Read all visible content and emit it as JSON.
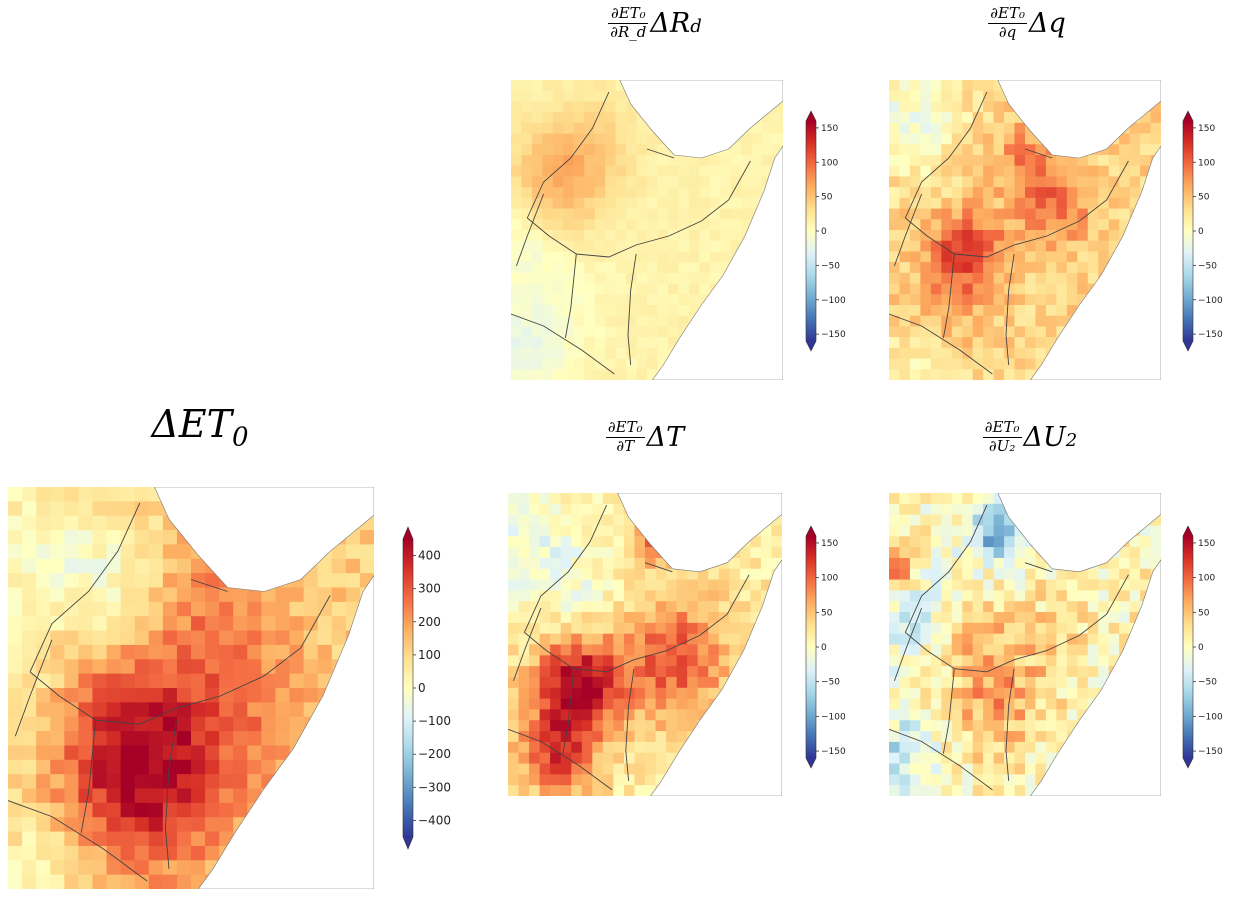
{
  "figure": {
    "colormap": "RdYlBu_r",
    "colormap_stops": [
      "#313695",
      "#4575b4",
      "#74add1",
      "#abd9e9",
      "#e0f3f8",
      "#ffffbf",
      "#fee090",
      "#fdae61",
      "#f46d43",
      "#d73027",
      "#a50026"
    ],
    "land_background": "#fefebe",
    "border_color": "#444444"
  },
  "chart_data": [
    {
      "id": "delta-et0",
      "type": "heatmap",
      "title": "ΔET₀",
      "title_parts": {
        "numerator": "",
        "denominator": "",
        "main": "ΔET",
        "sub": "0"
      },
      "colorbar": {
        "vmin": -450,
        "vmax": 450,
        "ticks": [
          -400,
          -300,
          -200,
          -100,
          0,
          100,
          200,
          300,
          400
        ],
        "tick_labels": [
          "−400",
          "−300",
          "−200",
          "−100",
          "0",
          "100",
          "200",
          "300",
          "400"
        ],
        "extend": "both"
      },
      "field": {
        "base": 120,
        "hotspots": [
          [
            0.3,
            0.63,
            0.16,
            230
          ],
          [
            0.58,
            0.55,
            0.18,
            130
          ],
          [
            0.4,
            0.8,
            0.14,
            140
          ],
          [
            0.55,
            0.25,
            0.12,
            80
          ],
          [
            0.1,
            0.2,
            0.18,
            -120
          ],
          [
            0.3,
            0.25,
            0.1,
            -80
          ],
          [
            0.05,
            0.6,
            0.12,
            -90
          ],
          [
            0.08,
            0.95,
            0.1,
            -110
          ]
        ],
        "noise": 55
      }
    },
    {
      "id": "rd-term",
      "type": "heatmap",
      "title": "∂ET₀/∂R_d ΔR_d",
      "title_parts": {
        "numerator": "∂ET₀",
        "denominator": "∂R_d",
        "main": "ΔR",
        "sub": "d"
      },
      "colorbar": {
        "vmin": -160,
        "vmax": 160,
        "ticks": [
          -150,
          -100,
          -50,
          0,
          50,
          100,
          150
        ],
        "tick_labels": [
          "−150",
          "−100",
          "−50",
          "0",
          "50",
          "100",
          "150"
        ],
        "extend": "both"
      },
      "field": {
        "base": 12,
        "hotspots": [
          [
            0.18,
            0.33,
            0.13,
            48
          ],
          [
            0.3,
            0.2,
            0.12,
            18
          ],
          [
            0.05,
            0.9,
            0.12,
            -32
          ],
          [
            0.04,
            0.55,
            0.1,
            -22
          ],
          [
            0.2,
            0.7,
            0.12,
            -10
          ]
        ],
        "noise": 7
      }
    },
    {
      "id": "q-term",
      "type": "heatmap",
      "title": "∂ET₀/∂q Δq",
      "title_parts": {
        "numerator": "∂ET₀",
        "denominator": "∂q",
        "main": "Δq",
        "sub": ""
      },
      "colorbar": {
        "vmin": -160,
        "vmax": 160,
        "ticks": [
          -150,
          -100,
          -50,
          0,
          50,
          100,
          150
        ],
        "tick_labels": [
          "−150",
          "−100",
          "−50",
          "0",
          "50",
          "100",
          "150"
        ],
        "extend": "both"
      },
      "field": {
        "base": 38,
        "hotspots": [
          [
            0.28,
            0.58,
            0.1,
            85
          ],
          [
            0.6,
            0.42,
            0.1,
            55
          ],
          [
            0.5,
            0.25,
            0.08,
            40
          ],
          [
            0.08,
            0.12,
            0.14,
            -48
          ],
          [
            0.1,
            0.95,
            0.1,
            -30
          ],
          [
            0.2,
            0.8,
            0.1,
            20
          ]
        ],
        "noise": 22
      }
    },
    {
      "id": "t-term",
      "type": "heatmap",
      "title": "∂ET₀/∂T ΔT",
      "title_parts": {
        "numerator": "∂ET₀",
        "denominator": "∂T",
        "main": "ΔT",
        "sub": ""
      },
      "colorbar": {
        "vmin": -160,
        "vmax": 160,
        "ticks": [
          -150,
          -100,
          -50,
          0,
          50,
          100,
          150
        ],
        "tick_labels": [
          "−150",
          "−100",
          "−50",
          "0",
          "50",
          "100",
          "150"
        ],
        "extend": "both"
      },
      "field": {
        "base": 18,
        "hotspots": [
          [
            0.25,
            0.63,
            0.11,
            140
          ],
          [
            0.6,
            0.55,
            0.15,
            90
          ],
          [
            0.18,
            0.86,
            0.1,
            100
          ],
          [
            0.1,
            0.2,
            0.14,
            -40
          ],
          [
            0.3,
            0.35,
            0.1,
            -20
          ],
          [
            0.55,
            0.15,
            0.06,
            80
          ]
        ],
        "noise": 22
      }
    },
    {
      "id": "u2-term",
      "type": "heatmap",
      "title": "∂ET₀/∂U₂ ΔU₂",
      "title_parts": {
        "numerator": "∂ET₀",
        "denominator": "∂U₂",
        "main": "ΔU",
        "sub": "2"
      },
      "colorbar": {
        "vmin": -160,
        "vmax": 160,
        "ticks": [
          -150,
          -100,
          -50,
          0,
          50,
          100,
          150
        ],
        "tick_labels": [
          "−150",
          "−100",
          "−50",
          "0",
          "50",
          "100",
          "150"
        ],
        "extend": "both"
      },
      "field": {
        "base": 10,
        "hotspots": [
          [
            0.4,
            0.12,
            0.08,
            -110
          ],
          [
            0.08,
            0.4,
            0.12,
            -50
          ],
          [
            0.05,
            0.85,
            0.1,
            -60
          ],
          [
            0.02,
            0.25,
            0.05,
            110
          ],
          [
            0.38,
            0.7,
            0.12,
            55
          ],
          [
            0.3,
            0.45,
            0.1,
            35
          ],
          [
            0.55,
            0.5,
            0.12,
            25
          ]
        ],
        "noise": 35
      }
    }
  ]
}
